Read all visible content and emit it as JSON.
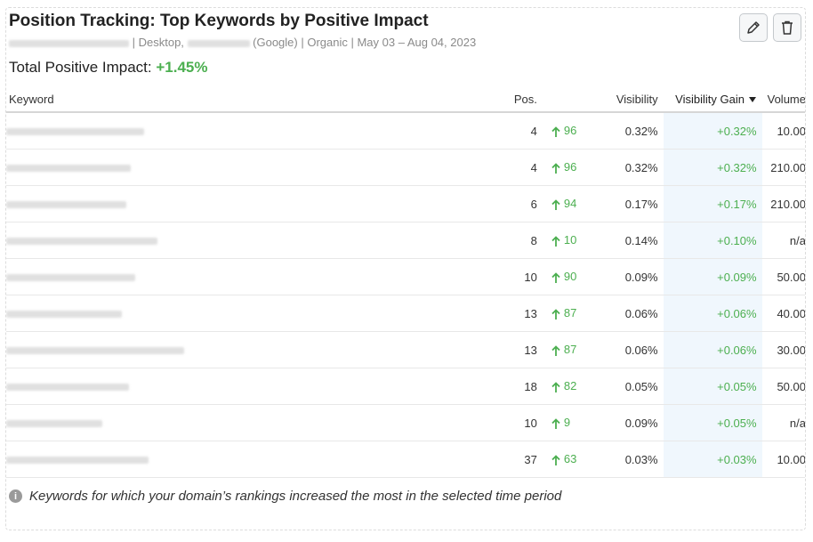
{
  "widget": {
    "title": "Position Tracking: Top Keywords by Positive Impact",
    "subtitle_device": "| Desktop, ",
    "subtitle_engine": "(Google) | Organic | May 03 – Aug 04, 2023",
    "total_label": "Total Positive Impact: ",
    "total_value": "+1.45%",
    "edit_icon": "pencil-icon",
    "delete_icon": "trash-icon"
  },
  "table": {
    "columns": {
      "keyword": "Keyword",
      "pos": "Pos.",
      "visibility": "Visibility",
      "gain": "Visibility Gain",
      "volume": "Volume"
    },
    "rows": [
      {
        "pos": "4",
        "delta": "96",
        "visibility": "0.32%",
        "gain": "+0.32%",
        "volume": "10.00"
      },
      {
        "pos": "4",
        "delta": "96",
        "visibility": "0.32%",
        "gain": "+0.32%",
        "volume": "210.00"
      },
      {
        "pos": "6",
        "delta": "94",
        "visibility": "0.17%",
        "gain": "+0.17%",
        "volume": "210.00"
      },
      {
        "pos": "8",
        "delta": "10",
        "visibility": "0.14%",
        "gain": "+0.10%",
        "volume": "n/a"
      },
      {
        "pos": "10",
        "delta": "90",
        "visibility": "0.09%",
        "gain": "+0.09%",
        "volume": "50.00"
      },
      {
        "pos": "13",
        "delta": "87",
        "visibility": "0.06%",
        "gain": "+0.06%",
        "volume": "40.00"
      },
      {
        "pos": "13",
        "delta": "87",
        "visibility": "0.06%",
        "gain": "+0.06%",
        "volume": "30.00"
      },
      {
        "pos": "18",
        "delta": "82",
        "visibility": "0.05%",
        "gain": "+0.05%",
        "volume": "50.00"
      },
      {
        "pos": "10",
        "delta": "9",
        "visibility": "0.09%",
        "gain": "+0.05%",
        "volume": "n/a"
      },
      {
        "pos": "37",
        "delta": "63",
        "visibility": "0.03%",
        "gain": "+0.03%",
        "volume": "10.00"
      }
    ]
  },
  "footer": {
    "note": "Keywords for which your domain’s rankings increased the most in the selected time period"
  },
  "colors": {
    "positive": "#4caf50",
    "gain_column_bg": "#f0f7fd"
  }
}
